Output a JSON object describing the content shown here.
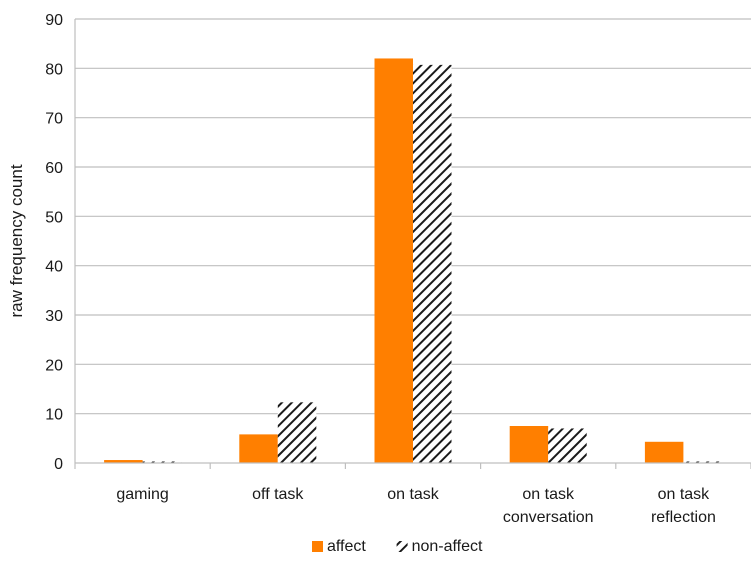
{
  "chart_data": {
    "type": "bar",
    "title": "",
    "xlabel": "",
    "ylabel": "raw frequency count",
    "ylim": [
      0,
      90
    ],
    "yticks": [
      0,
      10,
      20,
      30,
      40,
      50,
      60,
      70,
      80,
      90
    ],
    "grid": true,
    "legend_position": "bottom",
    "categories": [
      [
        "gaming"
      ],
      [
        "off task"
      ],
      [
        "on task"
      ],
      [
        "on task",
        "conversation"
      ],
      [
        "on task",
        "reflection"
      ]
    ],
    "series": [
      {
        "name": "affect",
        "color": "#ff7f00",
        "pattern": "solid",
        "values": [
          0.6,
          5.8,
          82,
          7.5,
          4.3
        ]
      },
      {
        "name": "non-affect",
        "color": "#1a1a1a",
        "pattern": "diagonal-hatch",
        "values": [
          0.3,
          12.3,
          80.7,
          7.0,
          0.3
        ]
      }
    ]
  }
}
